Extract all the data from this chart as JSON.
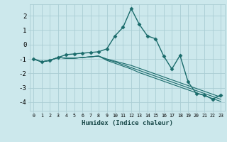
{
  "xlabel": "Humidex (Indice chaleur)",
  "background_color": "#cce8ec",
  "grid_color": "#aacdd4",
  "line_color": "#1a6b6b",
  "xlim": [
    -0.5,
    23.5
  ],
  "ylim": [
    -4.6,
    2.8
  ],
  "yticks": [
    -4,
    -3,
    -2,
    -1,
    0,
    1,
    2
  ],
  "xticks": [
    0,
    1,
    2,
    3,
    4,
    5,
    6,
    7,
    8,
    9,
    10,
    11,
    12,
    13,
    14,
    15,
    16,
    17,
    18,
    19,
    20,
    21,
    22,
    23
  ],
  "series": [
    [
      -1.0,
      -1.2,
      -1.1,
      -0.9,
      -0.7,
      -0.65,
      -0.6,
      -0.55,
      -0.5,
      -0.3,
      0.6,
      1.2,
      2.5,
      1.4,
      0.6,
      0.4,
      -0.8,
      -1.7,
      -0.75,
      -2.6,
      -3.4,
      -3.5,
      -3.8,
      -3.5
    ],
    [
      -1.0,
      -1.2,
      -1.1,
      -0.9,
      -0.95,
      -0.95,
      -0.9,
      -0.85,
      -0.8,
      -1.0,
      -1.15,
      -1.3,
      -1.45,
      -1.65,
      -1.85,
      -2.05,
      -2.25,
      -2.45,
      -2.65,
      -2.85,
      -3.05,
      -3.25,
      -3.45,
      -3.65
    ],
    [
      -1.0,
      -1.2,
      -1.1,
      -0.9,
      -0.95,
      -0.95,
      -0.9,
      -0.85,
      -0.8,
      -1.05,
      -1.2,
      -1.4,
      -1.6,
      -1.8,
      -2.0,
      -2.2,
      -2.4,
      -2.6,
      -2.8,
      -3.0,
      -3.2,
      -3.4,
      -3.6,
      -3.8
    ],
    [
      -1.0,
      -1.2,
      -1.1,
      -0.9,
      -0.95,
      -0.95,
      -0.9,
      -0.85,
      -0.8,
      -1.1,
      -1.3,
      -1.5,
      -1.7,
      -1.95,
      -2.15,
      -2.35,
      -2.55,
      -2.75,
      -2.95,
      -3.15,
      -3.35,
      -3.55,
      -3.75,
      -3.95
    ]
  ],
  "has_markers": [
    true,
    false,
    false,
    false
  ],
  "linewidths": [
    1.0,
    0.8,
    0.8,
    0.8
  ],
  "marker_size": 2.5,
  "xlabel_fontsize": 6.5,
  "xtick_fontsize": 4.8,
  "ytick_fontsize": 6.5
}
